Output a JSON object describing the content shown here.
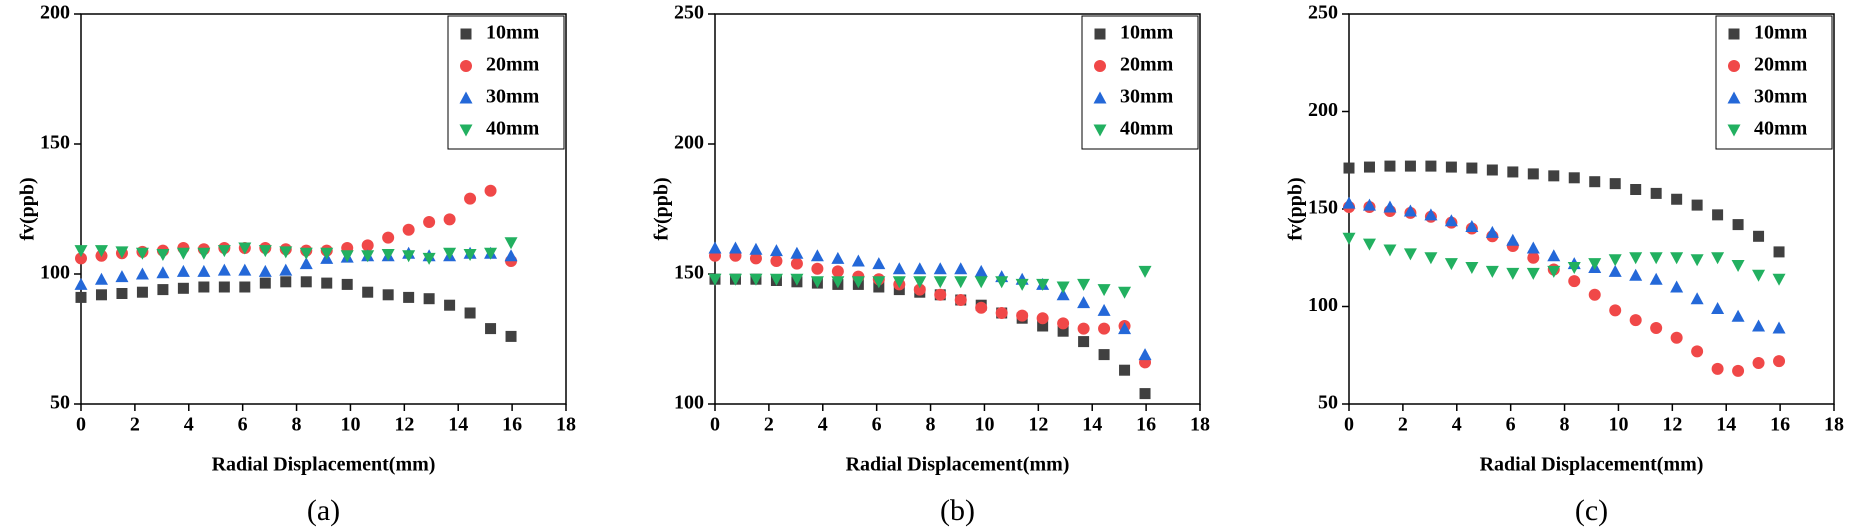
{
  "chart_data": [
    {
      "type": "scatter",
      "caption": "(a)",
      "x_label": "Radial Displacement(mm)",
      "y_label": "fv(ppb)",
      "x": [
        0,
        0.76,
        1.52,
        2.28,
        3.04,
        3.8,
        4.56,
        5.32,
        6.08,
        6.84,
        7.6,
        8.36,
        9.12,
        9.88,
        10.64,
        11.4,
        12.16,
        12.92,
        13.68,
        14.44,
        15.2,
        15.96
      ],
      "xlim": [
        0,
        18
      ],
      "xticks": [
        0,
        2,
        4,
        6,
        8,
        10,
        12,
        14,
        16,
        18
      ],
      "ylim": [
        50,
        200
      ],
      "yticks": [
        50,
        100,
        150,
        200
      ],
      "legend": "upper right",
      "series": [
        {
          "name": "10mm",
          "color": "#404040",
          "marker": "square",
          "values": [
            91,
            92,
            92.5,
            93,
            94,
            94.5,
            95,
            95,
            95,
            96.5,
            97,
            97,
            96.5,
            96,
            93,
            92,
            91,
            90.5,
            88,
            85,
            79,
            76
          ]
        },
        {
          "name": "20mm",
          "color": "#f04848",
          "marker": "circle",
          "values": [
            106,
            107,
            108,
            108.5,
            109,
            110,
            109.5,
            110,
            110,
            110,
            109.5,
            109,
            109,
            110,
            111,
            114,
            117,
            120,
            121,
            129,
            132,
            105
          ]
        },
        {
          "name": "30mm",
          "color": "#2468d8",
          "marker": "triangle-up",
          "values": [
            96,
            98,
            99,
            100,
            100.5,
            101,
            101,
            101.5,
            101.5,
            101,
            101.5,
            104,
            106,
            106.5,
            107,
            107,
            108,
            107,
            107,
            108,
            108,
            107
          ]
        },
        {
          "name": "40mm",
          "color": "#22b060",
          "marker": "triangle-down",
          "values": [
            109,
            109,
            108.5,
            108,
            107.5,
            108,
            108,
            109,
            110,
            109,
            108.5,
            108,
            108,
            107,
            107,
            107.5,
            107,
            106,
            108,
            107.5,
            108,
            112
          ]
        }
      ]
    },
    {
      "type": "scatter",
      "caption": "(b)",
      "x_label": "Radial Displacement(mm)",
      "y_label": "fv(ppb)",
      "x": [
        0,
        0.76,
        1.52,
        2.28,
        3.04,
        3.8,
        4.56,
        5.32,
        6.08,
        6.84,
        7.6,
        8.36,
        9.12,
        9.88,
        10.64,
        11.4,
        12.16,
        12.92,
        13.68,
        14.44,
        15.2,
        15.96
      ],
      "xlim": [
        0,
        18
      ],
      "xticks": [
        0,
        2,
        4,
        6,
        8,
        10,
        12,
        14,
        16,
        18
      ],
      "ylim": [
        100,
        250
      ],
      "yticks": [
        100,
        150,
        200,
        250
      ],
      "legend": "upper right",
      "series": [
        {
          "name": "10mm",
          "color": "#404040",
          "marker": "square",
          "values": [
            148,
            148,
            148,
            147.5,
            147,
            146.5,
            146,
            146,
            145,
            144,
            143,
            142,
            140,
            138,
            135,
            133,
            130,
            128,
            124,
            119,
            113,
            104
          ]
        },
        {
          "name": "20mm",
          "color": "#f04848",
          "marker": "circle",
          "values": [
            157,
            157,
            156,
            155,
            154,
            152,
            151,
            149,
            148,
            146,
            144,
            142,
            140,
            137,
            135,
            134,
            133,
            131,
            129,
            129,
            130,
            116
          ]
        },
        {
          "name": "30mm",
          "color": "#2468d8",
          "marker": "triangle-up",
          "values": [
            160,
            160,
            159.5,
            159,
            158,
            157,
            156,
            155,
            154,
            152,
            152,
            152,
            152,
            151,
            149,
            148,
            146,
            142,
            139,
            136,
            129,
            119
          ]
        },
        {
          "name": "40mm",
          "color": "#22b060",
          "marker": "triangle-down",
          "values": [
            148,
            148,
            148,
            148,
            148,
            147,
            147,
            147,
            147,
            147,
            147,
            147,
            147,
            147,
            147,
            146,
            146,
            145,
            146,
            144,
            143,
            151
          ]
        }
      ]
    },
    {
      "type": "scatter",
      "caption": "(c)",
      "x_label": "Radial Displacement(mm)",
      "y_label": "fv(ppb)",
      "x": [
        0,
        0.76,
        1.52,
        2.28,
        3.04,
        3.8,
        4.56,
        5.32,
        6.08,
        6.84,
        7.6,
        8.36,
        9.12,
        9.88,
        10.64,
        11.4,
        12.16,
        12.92,
        13.68,
        14.44,
        15.2,
        15.96
      ],
      "xlim": [
        0,
        18
      ],
      "xticks": [
        0,
        2,
        4,
        6,
        8,
        10,
        12,
        14,
        16,
        18
      ],
      "ylim": [
        50,
        250
      ],
      "yticks": [
        50,
        100,
        150,
        200,
        250
      ],
      "legend": "upper right",
      "series": [
        {
          "name": "10mm",
          "color": "#404040",
          "marker": "square",
          "values": [
            171,
            171.5,
            172,
            172,
            172,
            171.5,
            171,
            170,
            169,
            168,
            167,
            166,
            164,
            163,
            160,
            158,
            155,
            152,
            147,
            142,
            136,
            128
          ]
        },
        {
          "name": "20mm",
          "color": "#f04848",
          "marker": "circle",
          "values": [
            151,
            151,
            149,
            148,
            146,
            143,
            140,
            136,
            131,
            125,
            119,
            113,
            106,
            98,
            93,
            89,
            84,
            77,
            68,
            67,
            71,
            72
          ]
        },
        {
          "name": "30mm",
          "color": "#2468d8",
          "marker": "triangle-up",
          "values": [
            153,
            152,
            151,
            149,
            147,
            144,
            141,
            138,
            134,
            130,
            126,
            122,
            120,
            118,
            116,
            114,
            110,
            104,
            99,
            95,
            90,
            89
          ]
        },
        {
          "name": "40mm",
          "color": "#22b060",
          "marker": "triangle-down",
          "values": [
            135,
            132,
            129,
            127,
            125,
            122,
            120,
            118,
            117,
            117,
            118,
            120,
            122,
            124,
            125,
            125,
            125,
            124,
            125,
            121,
            116,
            114
          ]
        }
      ]
    }
  ]
}
